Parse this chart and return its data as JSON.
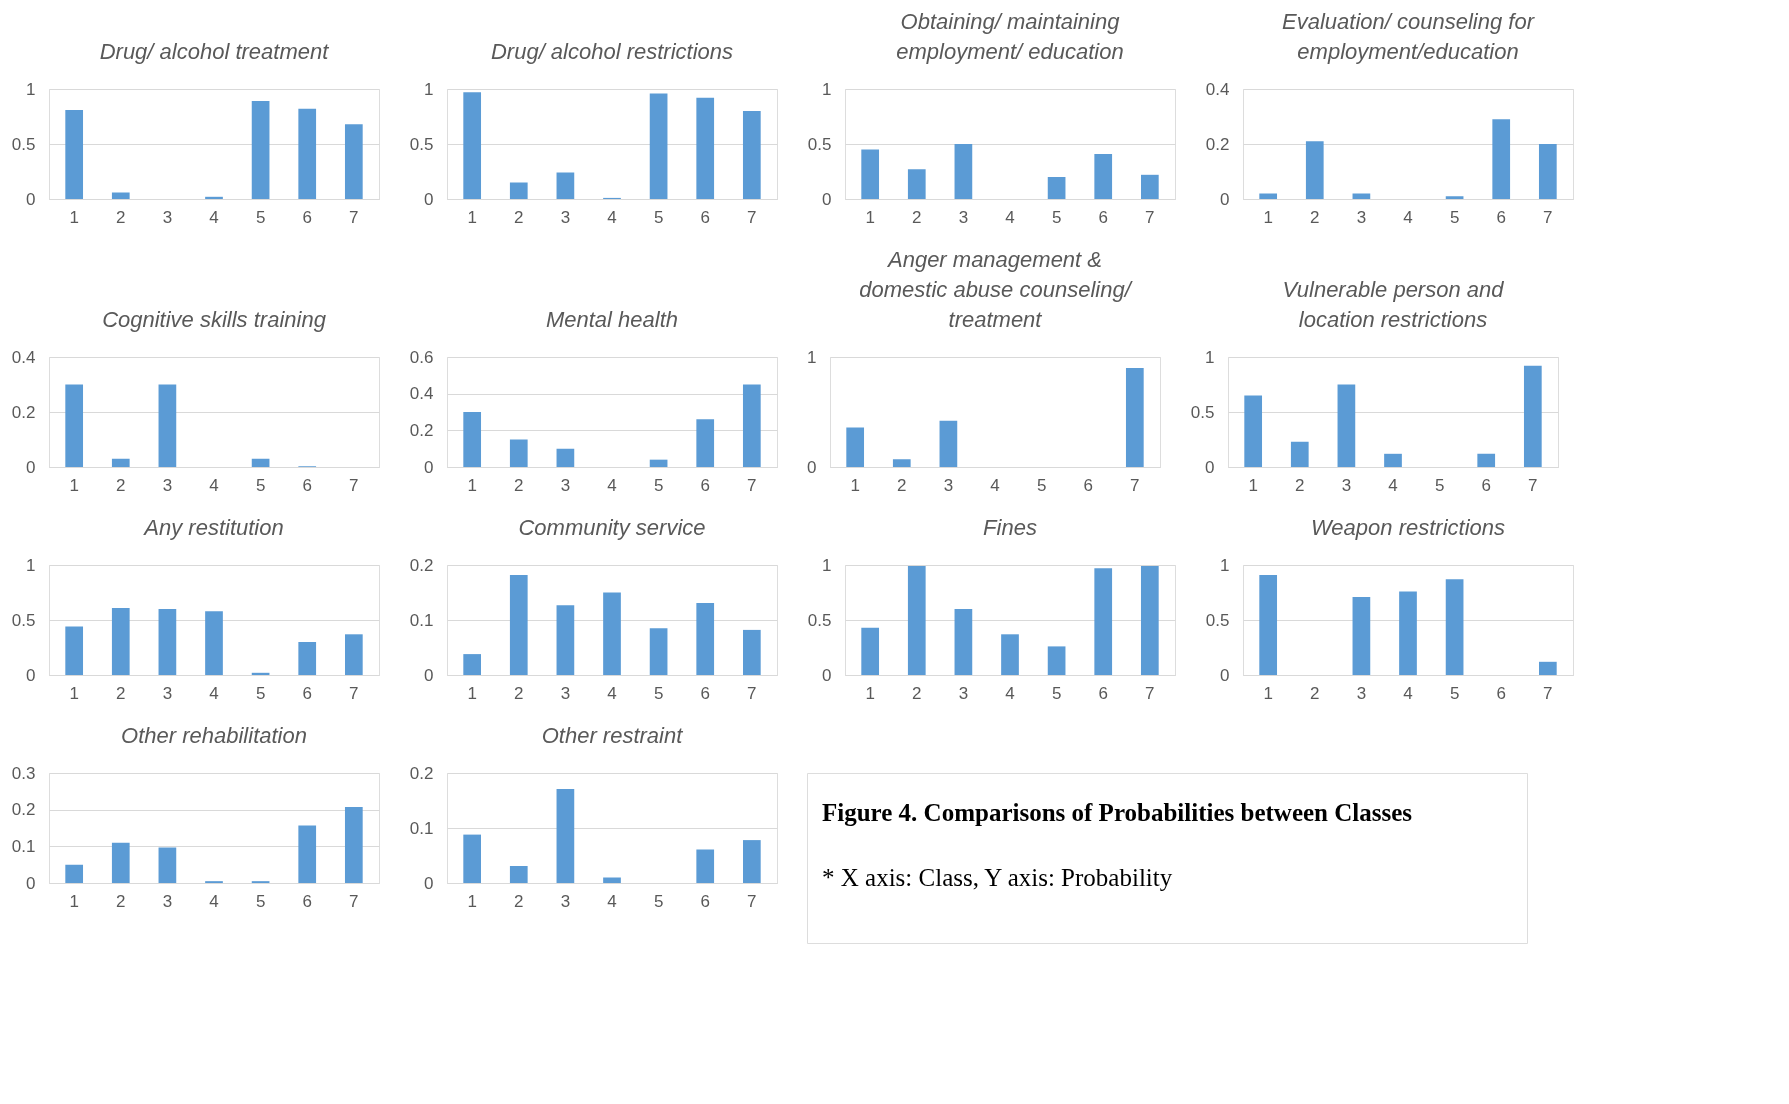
{
  "chart_data": [
    {
      "type": "bar",
      "title": "Drug/ alcohol treatment",
      "categories": [
        "1",
        "2",
        "3",
        "4",
        "5",
        "6",
        "7"
      ],
      "values": [
        0.81,
        0.06,
        0,
        0.02,
        0.89,
        0.82,
        0.68
      ],
      "color": "#5b9bd5",
      "ylim": [
        0,
        1
      ],
      "yticks": [
        0,
        0.5,
        1
      ],
      "grid": "y"
    },
    {
      "type": "bar",
      "title": "Drug/ alcohol restrictions",
      "categories": [
        "1",
        "2",
        "3",
        "4",
        "5",
        "6",
        "7"
      ],
      "values": [
        0.97,
        0.15,
        0.24,
        0.01,
        0.96,
        0.92,
        0.8
      ],
      "color": "#5b9bd5",
      "ylim": [
        0,
        1
      ],
      "yticks": [
        0,
        0.5,
        1
      ],
      "grid": "y"
    },
    {
      "type": "bar",
      "title": "Obtaining/ maintaining employment/ education",
      "categories": [
        "1",
        "2",
        "3",
        "4",
        "5",
        "6",
        "7"
      ],
      "values": [
        0.45,
        0.27,
        0.5,
        0,
        0.2,
        0.41,
        0.22
      ],
      "color": "#5b9bd5",
      "ylim": [
        0,
        1
      ],
      "yticks": [
        0,
        0.5,
        1
      ],
      "grid": "y"
    },
    {
      "type": "bar",
      "title": "Evaluation/ counseling for employment/education",
      "categories": [
        "1",
        "2",
        "3",
        "4",
        "5",
        "6",
        "7"
      ],
      "values": [
        0.02,
        0.21,
        0.02,
        0,
        0.01,
        0.29,
        0.2
      ],
      "color": "#5b9bd5",
      "ylim": [
        0,
        0.4
      ],
      "yticks": [
        0,
        0.2,
        0.4
      ],
      "grid": "y"
    },
    {
      "type": "bar",
      "title": "Cognitive skills training",
      "categories": [
        "1",
        "2",
        "3",
        "4",
        "5",
        "6",
        "7"
      ],
      "values": [
        0.3,
        0.03,
        0.3,
        0,
        0.03,
        0.003,
        0
      ],
      "color": "#5b9bd5",
      "ylim": [
        0,
        0.4
      ],
      "yticks": [
        0,
        0.2,
        0.4
      ],
      "grid": "y"
    },
    {
      "type": "bar",
      "title": "Mental health",
      "categories": [
        "1",
        "2",
        "3",
        "4",
        "5",
        "6",
        "7"
      ],
      "values": [
        0.3,
        0.15,
        0.1,
        0,
        0.04,
        0.26,
        0.45
      ],
      "color": "#5b9bd5",
      "ylim": [
        0,
        0.6
      ],
      "yticks": [
        0,
        0.2,
        0.4,
        0.6
      ],
      "grid": "y"
    },
    {
      "type": "bar",
      "title": "Anger management & domestic abuse counseling/ treatment",
      "categories": [
        "1",
        "2",
        "3",
        "4",
        "5",
        "6",
        "7"
      ],
      "values": [
        0.36,
        0.07,
        0.42,
        0,
        0,
        0,
        0.9
      ],
      "color": "#5b9bd5",
      "ylim": [
        0,
        1
      ],
      "yticks": [
        0,
        1
      ],
      "grid": "y"
    },
    {
      "type": "bar",
      "title": "Vulnerable person and location restrictions",
      "categories": [
        "1",
        "2",
        "3",
        "4",
        "5",
        "6",
        "7"
      ],
      "values": [
        0.65,
        0.23,
        0.75,
        0.12,
        0,
        0.12,
        0.92
      ],
      "color": "#5b9bd5",
      "ylim": [
        0,
        1
      ],
      "yticks": [
        0,
        0.5,
        1
      ],
      "grid": "y"
    },
    {
      "type": "bar",
      "title": "Any restitution",
      "categories": [
        "1",
        "2",
        "3",
        "4",
        "5",
        "6",
        "7"
      ],
      "values": [
        0.44,
        0.61,
        0.6,
        0.58,
        0.02,
        0.3,
        0.37
      ],
      "color": "#5b9bd5",
      "ylim": [
        0,
        1
      ],
      "yticks": [
        0,
        0.5,
        1
      ],
      "grid": "y"
    },
    {
      "type": "bar",
      "title": "Community service",
      "categories": [
        "1",
        "2",
        "3",
        "4",
        "5",
        "6",
        "7"
      ],
      "values": [
        0.038,
        0.182,
        0.127,
        0.15,
        0.085,
        0.131,
        0.082
      ],
      "color": "#5b9bd5",
      "ylim": [
        0,
        0.2
      ],
      "yticks": [
        0,
        0.1,
        0.2
      ],
      "grid": "y"
    },
    {
      "type": "bar",
      "title": "Fines",
      "categories": [
        "1",
        "2",
        "3",
        "4",
        "5",
        "6",
        "7"
      ],
      "values": [
        0.43,
        0.99,
        0.6,
        0.37,
        0.26,
        0.97,
        0.99
      ],
      "color": "#5b9bd5",
      "ylim": [
        0,
        1
      ],
      "yticks": [
        0,
        0.5,
        1
      ],
      "grid": "y"
    },
    {
      "type": "bar",
      "title": "Weapon restrictions",
      "categories": [
        "1",
        "2",
        "3",
        "4",
        "5",
        "6",
        "7"
      ],
      "values": [
        0.91,
        0,
        0.71,
        0.76,
        0.87,
        0,
        0.12
      ],
      "color": "#5b9bd5",
      "ylim": [
        0,
        1
      ],
      "yticks": [
        0,
        0.5,
        1
      ],
      "grid": "y"
    },
    {
      "type": "bar",
      "title": "Other rehabilitation",
      "categories": [
        "1",
        "2",
        "3",
        "4",
        "5",
        "6",
        "7"
      ],
      "values": [
        0.05,
        0.11,
        0.097,
        0.005,
        0.005,
        0.157,
        0.207
      ],
      "color": "#5b9bd5",
      "ylim": [
        0,
        0.3
      ],
      "yticks": [
        0,
        0.1,
        0.2,
        0.3
      ],
      "grid": "y"
    },
    {
      "type": "bar",
      "title": "Other restraint",
      "categories": [
        "1",
        "2",
        "3",
        "4",
        "5",
        "6",
        "7"
      ],
      "values": [
        0.088,
        0.031,
        0.171,
        0.01,
        0,
        0.061,
        0.078
      ],
      "color": "#5b9bd5",
      "ylim": [
        0,
        0.2
      ],
      "yticks": [
        0,
        0.1,
        0.2
      ],
      "grid": "y"
    },
    {
      "type": "other",
      "title": "Figure 4. Comparisons of Probabilities between Classes",
      "annotations": [
        "* X axis: Class, Y axis: Probability"
      ]
    }
  ]
}
